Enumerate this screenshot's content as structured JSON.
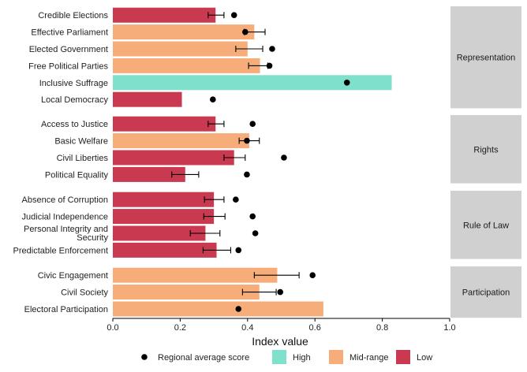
{
  "chart_data": {
    "type": "bar",
    "orientation": "horizontal",
    "xlabel": "Index value",
    "xlim": [
      0.0,
      1.0
    ],
    "xticks": [
      "0.0",
      "0.2",
      "0.4",
      "0.6",
      "0.8",
      "1.0"
    ],
    "grid": false,
    "legend_position": "bottom",
    "legend": {
      "point_label": "Regional average score",
      "categories": [
        {
          "key": "high",
          "label": "High",
          "color": "#7fe0cb"
        },
        {
          "key": "mid",
          "label": "Mid-range",
          "color": "#f6ad79"
        },
        {
          "key": "low",
          "label": "Low",
          "color": "#c9394f"
        }
      ]
    },
    "panels": [
      {
        "name": "Representation",
        "items": [
          {
            "label": "Credible Elections",
            "value": 0.305,
            "level": "low",
            "regional": 0.36,
            "err_lo": 0.283,
            "err_hi": 0.33
          },
          {
            "label": "Effective Parliament",
            "value": 0.42,
            "level": "mid",
            "regional": 0.393,
            "err_lo": 0.39,
            "err_hi": 0.452
          },
          {
            "label": "Elected Government",
            "value": 0.4,
            "level": "mid",
            "regional": 0.473,
            "err_lo": 0.365,
            "err_hi": 0.445
          },
          {
            "label": "Free Political Parties",
            "value": 0.437,
            "level": "mid",
            "regional": 0.465,
            "err_lo": 0.403,
            "err_hi": 0.46
          },
          {
            "label": "Inclusive Suffrage",
            "value": 0.828,
            "level": "high",
            "regional": 0.695,
            "err_lo": null,
            "err_hi": null
          },
          {
            "label": "Local Democracy",
            "value": 0.205,
            "level": "low",
            "regional": 0.297,
            "err_lo": null,
            "err_hi": null
          }
        ]
      },
      {
        "name": "Rights",
        "items": [
          {
            "label": "Access to Justice",
            "value": 0.305,
            "level": "low",
            "regional": 0.415,
            "err_lo": 0.283,
            "err_hi": 0.33
          },
          {
            "label": "Basic Welfare",
            "value": 0.405,
            "level": "mid",
            "regional": 0.398,
            "err_lo": 0.375,
            "err_hi": 0.435
          },
          {
            "label": "Civil Liberties",
            "value": 0.36,
            "level": "low",
            "regional": 0.508,
            "err_lo": 0.33,
            "err_hi": 0.393
          },
          {
            "label": "Political Equality",
            "value": 0.215,
            "level": "low",
            "regional": 0.398,
            "err_lo": 0.175,
            "err_hi": 0.255
          }
        ]
      },
      {
        "name": "Rule of Law",
        "items": [
          {
            "label": "Absence of Corruption",
            "value": 0.3,
            "level": "low",
            "regional": 0.365,
            "err_lo": 0.272,
            "err_hi": 0.33
          },
          {
            "label": "Judicial Independence",
            "value": 0.3,
            "level": "low",
            "regional": 0.415,
            "err_lo": 0.27,
            "err_hi": 0.333
          },
          {
            "label": "Personal Integrity and Security",
            "label_lines": [
              "Personal Integrity and",
              "Security"
            ],
            "value": 0.275,
            "level": "low",
            "regional": 0.423,
            "err_lo": 0.23,
            "err_hi": 0.318
          },
          {
            "label": "Predictable Enforcement",
            "value": 0.308,
            "level": "low",
            "regional": 0.373,
            "err_lo": 0.268,
            "err_hi": 0.35
          }
        ]
      },
      {
        "name": "Participation",
        "items": [
          {
            "label": "Civic Engagement",
            "value": 0.488,
            "level": "mid",
            "regional": 0.593,
            "err_lo": 0.42,
            "err_hi": 0.553
          },
          {
            "label": "Civil Society",
            "value": 0.435,
            "level": "mid",
            "regional": 0.497,
            "err_lo": 0.385,
            "err_hi": 0.485
          },
          {
            "label": "Electoral Participation",
            "value": 0.625,
            "level": "mid",
            "regional": 0.373,
            "err_lo": null,
            "err_hi": null
          }
        ]
      }
    ]
  }
}
